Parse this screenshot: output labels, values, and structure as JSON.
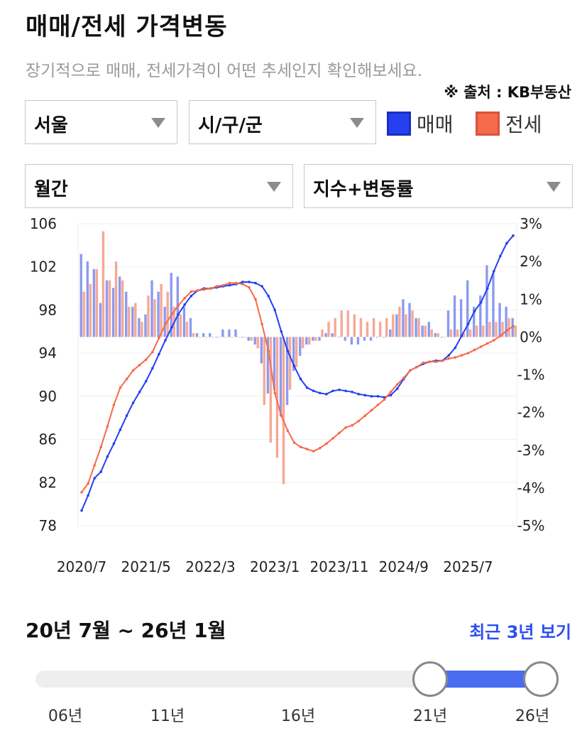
{
  "header": {
    "title": "매매/전세 가격변동",
    "subtitle": "장기적으로 매매, 전세가격이 어떤 추세인지 확인해보세요.",
    "source": "※ 출처 : KB부동산"
  },
  "filters": {
    "region": "서울",
    "district": "시/구/군",
    "period": "월간",
    "metric": "지수+변동률"
  },
  "legend": [
    {
      "label": "매매",
      "color": "#2540f0"
    },
    {
      "label": "전세",
      "color": "#f56a4a"
    }
  ],
  "chart_data": {
    "type": "line",
    "x_ticks": [
      "2020/7",
      "2021/5",
      "2022/3",
      "2023/1",
      "2023/11",
      "2024/9",
      "2025/7"
    ],
    "y_left_ticks": [
      "106",
      "102",
      "98",
      "94",
      "90",
      "86",
      "82",
      "78"
    ],
    "y_right_ticks": [
      "3%",
      "2%",
      "1%",
      "0%",
      "-1%",
      "-2%",
      "-3%",
      "-4%",
      "-5%"
    ],
    "y_left_range": [
      78,
      106
    ],
    "y_right_range": [
      -5,
      3
    ],
    "grid": true,
    "series": [
      {
        "name": "매매",
        "kind": "index-line",
        "color": "#2540f0",
        "values": [
          79.4,
          80.8,
          82.4,
          83.0,
          84.4,
          85.6,
          86.9,
          88.2,
          89.4,
          90.4,
          91.4,
          92.6,
          93.9,
          95.2,
          96.4,
          97.6,
          98.5,
          99.3,
          99.8,
          100.0,
          100.0,
          100.1,
          100.2,
          100.3,
          100.4,
          100.6,
          100.6,
          100.5,
          100.2,
          99.3,
          98.0,
          96.0,
          94.2,
          92.8,
          91.6,
          90.8,
          90.5,
          90.3,
          90.2,
          90.5,
          90.6,
          90.5,
          90.4,
          90.2,
          90.1,
          90.0,
          90.0,
          89.9,
          90.1,
          90.7,
          91.6,
          92.4,
          92.7,
          93.0,
          93.2,
          93.3,
          93.3,
          93.8,
          94.5,
          95.6,
          96.7,
          97.9,
          98.7,
          100.0,
          101.6,
          103.0,
          104.2,
          104.9
        ]
      },
      {
        "name": "전세",
        "kind": "index-line",
        "color": "#f56a4a",
        "values": [
          81.1,
          81.9,
          83.6,
          85.3,
          87.2,
          89.2,
          90.8,
          91.6,
          92.4,
          92.9,
          93.4,
          94.1,
          95.4,
          96.7,
          97.6,
          98.4,
          99.1,
          99.7,
          99.8,
          99.9,
          100.0,
          100.2,
          100.3,
          100.5,
          100.5,
          100.4,
          100.1,
          99.0,
          96.7,
          94.2,
          90.3,
          88.2,
          86.8,
          85.7,
          85.3,
          85.1,
          84.9,
          85.2,
          85.6,
          86.1,
          86.6,
          87.1,
          87.3,
          87.7,
          88.2,
          88.7,
          89.2,
          89.7,
          90.4,
          91.1,
          91.7,
          92.4,
          92.7,
          93.1,
          93.2,
          93.2,
          93.3,
          93.5,
          93.6,
          93.8,
          94.0,
          94.3,
          94.6,
          94.9,
          95.2,
          95.6,
          96.1,
          96.5
        ]
      },
      {
        "name": "매매 변동률",
        "kind": "rate-bar",
        "unit": "%",
        "color": "#8090ec",
        "values": [
          2.2,
          2.0,
          1.8,
          0.9,
          1.5,
          1.3,
          1.6,
          1.2,
          0.8,
          0.5,
          0.6,
          1.5,
          1.2,
          0.8,
          1.7,
          1.6,
          0.8,
          0.5,
          0.1,
          0.1,
          0.1,
          0.0,
          0.2,
          0.2,
          0.2,
          0.0,
          -0.1,
          -0.2,
          -0.7,
          -1.5,
          -1.4,
          -2.1,
          -1.8,
          -0.9,
          -0.5,
          -0.2,
          -0.1,
          -0.1,
          0.1,
          0.1,
          0.0,
          -0.1,
          -0.2,
          -0.2,
          -0.1,
          -0.1,
          0.0,
          0.0,
          0.2,
          0.6,
          1.0,
          0.9,
          0.5,
          0.3,
          0.4,
          0.1,
          0.0,
          0.7,
          1.1,
          1.0,
          1.5,
          0.8,
          1.1,
          1.9,
          1.7,
          0.9,
          0.8,
          0.5
        ]
      },
      {
        "name": "전세 변동률",
        "kind": "rate-bar",
        "unit": "%",
        "color": "#f4a08c",
        "values": [
          1.2,
          1.4,
          1.8,
          2.8,
          1.5,
          2.0,
          1.5,
          0.8,
          0.9,
          0.4,
          1.1,
          1.0,
          1.4,
          1.2,
          0.8,
          0.6,
          0.4,
          0.1,
          0.0,
          0.0,
          0.0,
          0.0,
          0.0,
          0.0,
          0.0,
          0.0,
          -0.1,
          -0.3,
          -1.8,
          -2.8,
          -3.2,
          -3.9,
          -1.4,
          -0.8,
          -0.3,
          -0.2,
          -0.1,
          0.2,
          0.4,
          0.5,
          0.7,
          0.7,
          0.6,
          0.5,
          0.4,
          0.5,
          0.4,
          0.5,
          0.6,
          0.8,
          0.6,
          0.7,
          0.5,
          0.3,
          0.2,
          0.1,
          0.0,
          0.2,
          0.2,
          0.1,
          0.2,
          0.3,
          0.3,
          0.4,
          0.4,
          0.4,
          0.5,
          0.3
        ]
      }
    ]
  },
  "range": {
    "label": "20년 7월 ~ 26년 1월",
    "recent_button": "최근 3년 보기",
    "ticks": [
      "06년",
      "11년",
      "16년",
      "21년",
      "26년"
    ],
    "selected_start": "21년",
    "selected_end": "26년"
  }
}
